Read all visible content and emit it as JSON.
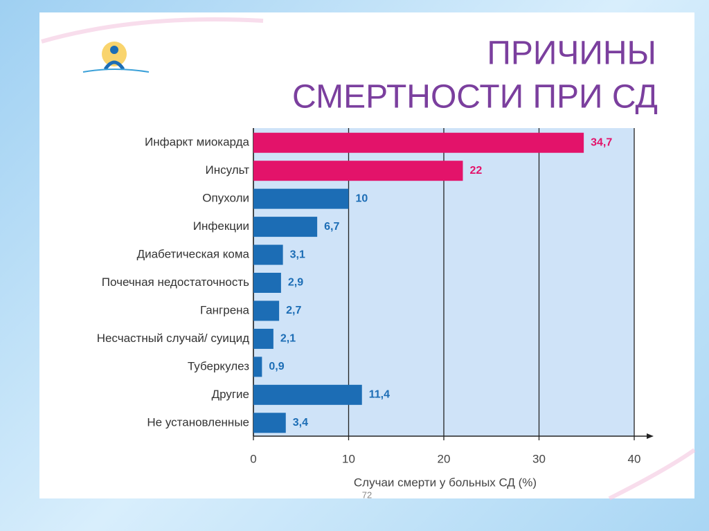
{
  "chart_data": {
    "type": "hbar",
    "title": [
      "ПРИЧИНЫ",
      "СМЕРТНОСТИ ПРИ СД"
    ],
    "xlabel": "Случаи смерти у больных СД (%)",
    "categories": [
      "Инфаркт миокарда",
      "Инсульт",
      "Опухоли",
      "Инфекции",
      "Диабетическая кома",
      "Почечная недостаточность",
      "Гангрена",
      "Несчастный случай/ суицид",
      "Туберкулез",
      "Другие",
      "Не установленные"
    ],
    "values": [
      34.7,
      22,
      10,
      6.7,
      3.1,
      2.9,
      2.7,
      2.1,
      0.9,
      11.4,
      3.4
    ],
    "value_labels": [
      "34,7",
      "22",
      "10",
      "6,7",
      "3,1",
      "2,9",
      "2,7",
      "2,1",
      "0,9",
      "11,4",
      "3,4"
    ],
    "colors": [
      "#e3136a",
      "#e3136a",
      "#1c6db5",
      "#1c6db5",
      "#1c6db5",
      "#1c6db5",
      "#1c6db5",
      "#1c6db5",
      "#1c6db5",
      "#1c6db5",
      "#1c6db5"
    ],
    "xlim": [
      0,
      40
    ],
    "xticks": [
      0,
      10,
      20,
      30,
      40
    ],
    "grid": true
  },
  "page_number": "72"
}
